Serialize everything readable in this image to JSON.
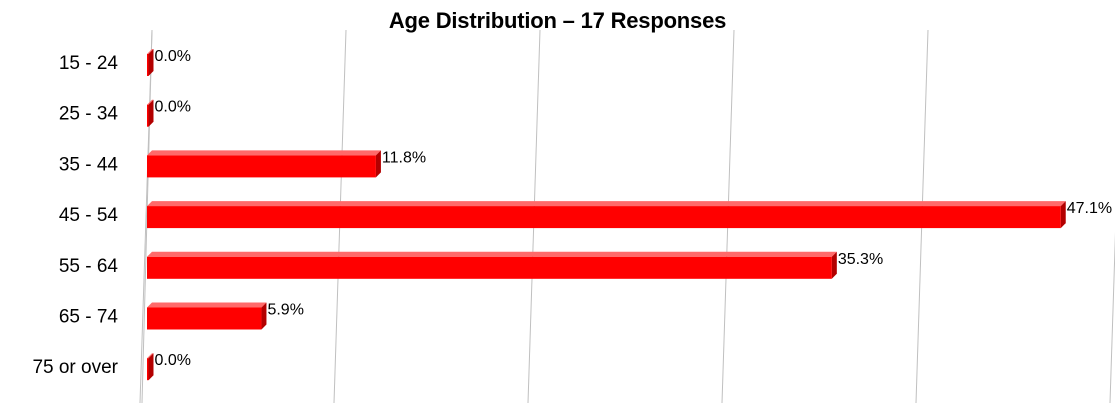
{
  "chart_data": {
    "type": "bar",
    "orientation": "horizontal",
    "title": "Age Distribution – 17 Responses",
    "xlabel": "",
    "ylabel": "",
    "categories": [
      "15 - 24",
      "25 - 34",
      "35 - 44",
      "45 - 54",
      "55 - 64",
      "65 - 74",
      "75 or over"
    ],
    "values": [
      0.0,
      0.0,
      11.8,
      47.1,
      35.3,
      5.9,
      0.0
    ],
    "value_labels": [
      "0.0%",
      "0.0%",
      "11.8%",
      "47.1%",
      "35.3%",
      "5.9%",
      "0.0%"
    ],
    "xlim": [
      0,
      50
    ],
    "grid": true,
    "legend": "none",
    "bar_style": "3d",
    "colors": {
      "bar_front": "#ff0000",
      "bar_top": "#ff6a6a",
      "bar_side": "#b30000",
      "grid": "#c0c0c0"
    }
  }
}
